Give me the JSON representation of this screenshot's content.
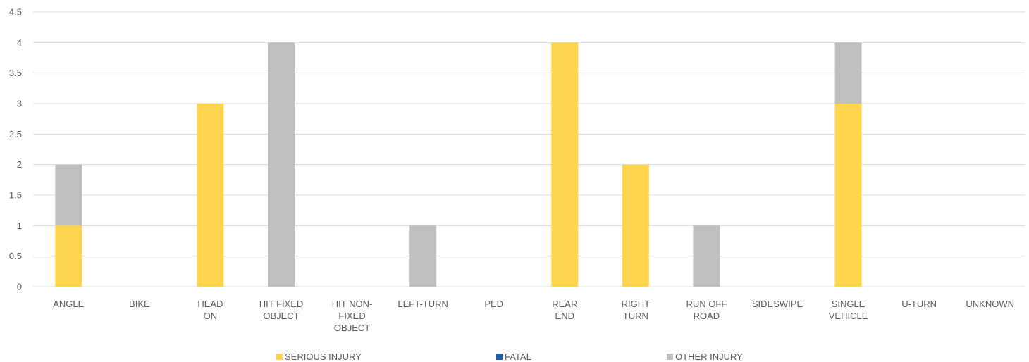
{
  "chart_data": {
    "type": "bar",
    "stacked": true,
    "categories": [
      "ANGLE",
      "BIKE",
      "HEAD ON",
      "HIT FIXED OBJECT",
      "HIT NON-FIXED OBJECT",
      "LEFT-TURN",
      "PED",
      "REAR END",
      "RIGHT TURN",
      "RUN OFF ROAD",
      "SIDESWIPE",
      "SINGLE VEHICLE",
      "U-TURN",
      "UNKNOWN"
    ],
    "category_lines": [
      [
        "ANGLE"
      ],
      [
        "BIKE"
      ],
      [
        "HEAD",
        "ON"
      ],
      [
        "HIT FIXED",
        "OBJECT"
      ],
      [
        "HIT NON-",
        "FIXED",
        "OBJECT"
      ],
      [
        "LEFT-TURN"
      ],
      [
        "PED"
      ],
      [
        "REAR",
        "END"
      ],
      [
        "RIGHT",
        "TURN"
      ],
      [
        "RUN OFF",
        "ROAD"
      ],
      [
        "SIDESWIPE"
      ],
      [
        "SINGLE",
        "VEHICLE"
      ],
      [
        "U-TURN"
      ],
      [
        "UNKNOWN"
      ]
    ],
    "series": [
      {
        "name": "SERIOUS INJURY",
        "color": "#FFD54F",
        "values": [
          1,
          0,
          3,
          0,
          0,
          0,
          0,
          4,
          2,
          0,
          0,
          3,
          0,
          0
        ]
      },
      {
        "name": "FATAL",
        "color": "#1F5FA6",
        "values": [
          0,
          0,
          0,
          0,
          0,
          0,
          0,
          0,
          0,
          0,
          0,
          0,
          0,
          0
        ]
      },
      {
        "name": "OTHER INJURY",
        "color": "#BFBFBF",
        "values": [
          1,
          0,
          0,
          4,
          0,
          1,
          0,
          0,
          0,
          1,
          0,
          1,
          0,
          0
        ]
      }
    ],
    "ylim": [
      0,
      4.5
    ],
    "yticks": [
      "0",
      "0.5",
      "1",
      "1.5",
      "2",
      "2.5",
      "3",
      "3.5",
      "4",
      "4.5"
    ],
    "grid": true,
    "legend_position": "bottom"
  }
}
